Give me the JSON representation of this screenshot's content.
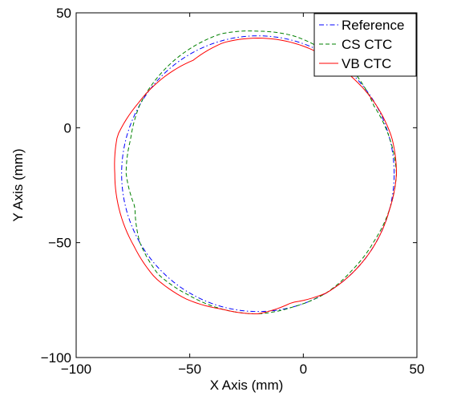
{
  "chart_data": {
    "type": "line",
    "title": "",
    "xlabel": "X Axis (mm)",
    "ylabel": "Y Axis (mm)",
    "xlim": [
      -100,
      50
    ],
    "ylim": [
      -100,
      50
    ],
    "x_ticks": [
      -100,
      -50,
      0,
      50
    ],
    "y_ticks": [
      -100,
      -50,
      0,
      50
    ],
    "x_tick_labels": [
      "−100",
      "−50",
      "0",
      "50"
    ],
    "y_tick_labels": [
      "−100",
      "−50",
      "0",
      "50"
    ],
    "grid": false,
    "legend_position": "top-right",
    "series": [
      {
        "name": "Reference",
        "color": "#0000ff",
        "style": "dashdot",
        "center": [
          -20,
          -20
        ],
        "radius": 60,
        "deviation": []
      },
      {
        "name": "CS CTC",
        "color": "#008000",
        "style": "dashed",
        "center": [
          -20,
          -20
        ],
        "radius": 60,
        "deviation": [
          [
            0,
            1
          ],
          [
            15,
            0
          ],
          [
            30,
            -1
          ],
          [
            45,
            1
          ],
          [
            60,
            1
          ],
          [
            75,
            2
          ],
          [
            90,
            2
          ],
          [
            105,
            3
          ],
          [
            120,
            2
          ],
          [
            135,
            1
          ],
          [
            150,
            0
          ],
          [
            165,
            -2
          ],
          [
            180,
            -2
          ],
          [
            195,
            -4
          ],
          [
            210,
            0
          ],
          [
            225,
            2
          ],
          [
            240,
            1
          ],
          [
            255,
            1
          ],
          [
            270,
            1
          ],
          [
            285,
            0
          ],
          [
            300,
            0
          ],
          [
            315,
            -1
          ],
          [
            330,
            -1
          ],
          [
            345,
            0
          ],
          [
            360,
            1
          ]
        ]
      },
      {
        "name": "VB CTC",
        "color": "#ff0000",
        "style": "solid",
        "center": [
          -20,
          -20
        ],
        "radius": 60,
        "deviation": [
          [
            0,
            1
          ],
          [
            15,
            1
          ],
          [
            30,
            0
          ],
          [
            45,
            -1
          ],
          [
            60,
            -1
          ],
          [
            75,
            -1
          ],
          [
            90,
            -1
          ],
          [
            105,
            -1
          ],
          [
            120,
            -3
          ],
          [
            135,
            -1
          ],
          [
            150,
            1
          ],
          [
            165,
            4
          ],
          [
            180,
            3
          ],
          [
            195,
            3
          ],
          [
            210,
            3
          ],
          [
            225,
            4
          ],
          [
            240,
            3
          ],
          [
            255,
            1
          ],
          [
            270,
            1
          ],
          [
            285,
            -2
          ],
          [
            300,
            0
          ],
          [
            315,
            0
          ],
          [
            330,
            0
          ],
          [
            345,
            0
          ],
          [
            360,
            1
          ]
        ]
      }
    ]
  }
}
